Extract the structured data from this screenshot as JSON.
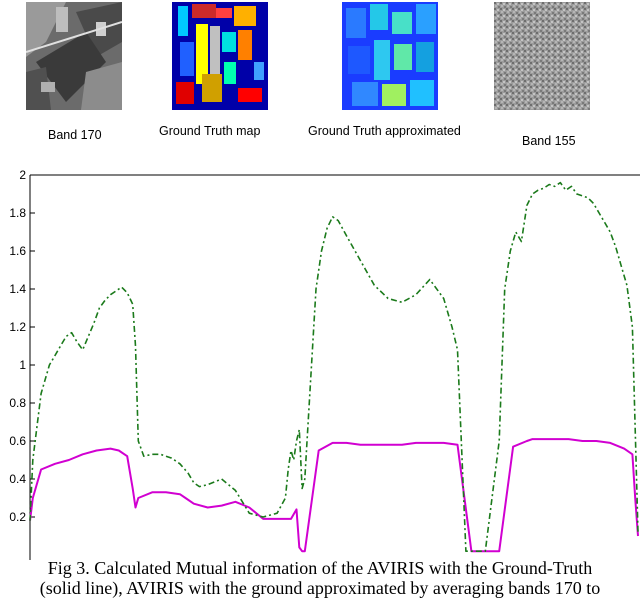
{
  "thumbnails": [
    {
      "caption": "Band 170"
    },
    {
      "caption": "Ground Truth map"
    },
    {
      "caption": "Ground Truth approximated"
    },
    {
      "caption": "Band 155"
    }
  ],
  "caption": {
    "line1": "Fig 3.  Calculated Mutual information of the AVIRIS with the Ground-Truth",
    "line2": "(solid line), AVIRIS with the ground approximated by averaging bands 170 to"
  },
  "colors": {
    "solid_line": "#d100d1",
    "dashdot_line": "#1b7a1b"
  },
  "chart_data": {
    "type": "line",
    "title": "",
    "xlabel": "",
    "ylabel": "",
    "ylim": [
      0.1,
      2
    ],
    "xlim": [
      1,
      220
    ],
    "yticks": [
      "0.2",
      "0.4",
      "0.6",
      "0.8",
      "1",
      "1.2",
      "1.4",
      "1.6",
      "1.8",
      "2"
    ],
    "grid": false,
    "series": [
      {
        "style": "solid",
        "color": "#d100d1",
        "x": [
          1,
          2,
          5,
          10,
          15,
          20,
          25,
          30,
          33,
          36,
          38,
          39,
          40,
          45,
          50,
          55,
          57,
          60,
          65,
          70,
          75,
          80,
          85,
          90,
          92,
          95,
          97,
          98,
          99,
          100,
          105,
          110,
          115,
          120,
          125,
          130,
          135,
          140,
          145,
          150,
          155,
          160,
          165,
          170,
          175,
          180,
          182,
          185,
          190,
          195,
          200,
          205,
          210,
          215,
          218,
          219,
          220
        ],
        "y": [
          0.18,
          0.3,
          0.45,
          0.48,
          0.5,
          0.53,
          0.55,
          0.56,
          0.55,
          0.52,
          0.35,
          0.25,
          0.3,
          0.33,
          0.33,
          0.32,
          0.3,
          0.27,
          0.25,
          0.26,
          0.28,
          0.25,
          0.19,
          0.19,
          0.19,
          0.19,
          0.24,
          0.04,
          0.02,
          0.02,
          0.55,
          0.59,
          0.59,
          0.58,
          0.58,
          0.58,
          0.58,
          0.59,
          0.59,
          0.59,
          0.58,
          0.02,
          0.02,
          0.02,
          0.57,
          0.6,
          0.61,
          0.61,
          0.61,
          0.61,
          0.6,
          0.6,
          0.59,
          0.56,
          0.53,
          0.3,
          0.1
        ]
      },
      {
        "style": "dash-dot",
        "color": "#1b7a1b",
        "x": [
          1,
          2,
          5,
          8,
          10,
          12,
          14,
          16,
          18,
          20,
          22,
          24,
          26,
          28,
          30,
          32,
          34,
          36,
          38,
          39,
          40,
          42,
          45,
          48,
          50,
          52,
          55,
          58,
          60,
          62,
          65,
          70,
          75,
          80,
          85,
          90,
          93,
          94,
          95,
          96,
          97,
          98,
          99,
          100,
          102,
          104,
          106,
          108,
          110,
          112,
          115,
          120,
          125,
          130,
          135,
          140,
          145,
          150,
          153,
          155,
          158,
          160,
          162,
          165,
          170,
          172,
          174,
          176,
          178,
          180,
          182,
          184,
          186,
          188,
          190,
          192,
          194,
          196,
          198,
          200,
          202,
          204,
          206,
          208,
          210,
          212,
          214,
          216,
          218,
          220
        ],
        "y": [
          0.18,
          0.5,
          0.85,
          1.0,
          1.05,
          1.1,
          1.15,
          1.17,
          1.12,
          1.08,
          1.15,
          1.22,
          1.3,
          1.34,
          1.37,
          1.39,
          1.41,
          1.38,
          1.32,
          1.1,
          0.6,
          0.52,
          0.53,
          0.53,
          0.52,
          0.51,
          0.48,
          0.43,
          0.38,
          0.36,
          0.37,
          0.4,
          0.34,
          0.22,
          0.2,
          0.22,
          0.3,
          0.45,
          0.55,
          0.5,
          0.6,
          0.66,
          0.35,
          0.4,
          0.9,
          1.4,
          1.6,
          1.72,
          1.78,
          1.76,
          1.68,
          1.55,
          1.42,
          1.35,
          1.33,
          1.37,
          1.45,
          1.35,
          1.2,
          1.08,
          0.02,
          0.02,
          0.02,
          0.02,
          0.6,
          1.4,
          1.6,
          1.7,
          1.65,
          1.84,
          1.9,
          1.92,
          1.93,
          1.95,
          1.94,
          1.96,
          1.92,
          1.94,
          1.9,
          1.89,
          1.88,
          1.85,
          1.8,
          1.75,
          1.7,
          1.62,
          1.52,
          1.42,
          1.2,
          0.12
        ]
      }
    ]
  }
}
